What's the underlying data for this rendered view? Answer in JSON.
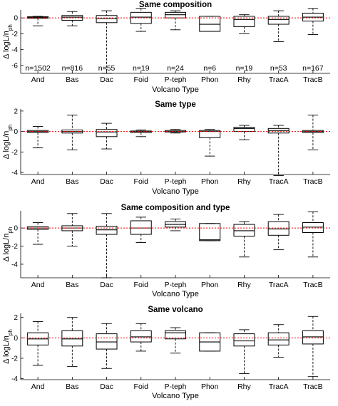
{
  "chart_data": [
    {
      "type": "boxplot",
      "title": "Same composition",
      "xlabel": "Volcano Type",
      "ylabel": "Δ logL/n_ph",
      "ylim": [
        -7,
        1
      ],
      "yticks": [
        0,
        -2,
        -4,
        -6
      ],
      "reference_line": 0,
      "categories": [
        "And",
        "Bas",
        "Dac",
        "Foid",
        "P-teph",
        "Phon",
        "Rhy",
        "TracA",
        "TracB"
      ],
      "n_labels": [
        "n=1502",
        "n=816",
        "n=55",
        "n=19",
        "n=24",
        "n=6",
        "n=19",
        "n=53",
        "n=167"
      ],
      "boxes": [
        {
          "min": -1.0,
          "q1": -0.05,
          "median": 0.05,
          "q3": 0.15,
          "max": 0.2
        },
        {
          "min": -1.0,
          "q1": -0.3,
          "median": 0.1,
          "q3": 0.3,
          "max": 0.8
        },
        {
          "min": -7.0,
          "q1": -0.6,
          "median": -0.1,
          "q3": 0.3,
          "max": 0.9
        },
        {
          "min": -1.7,
          "q1": -0.7,
          "median": 0.1,
          "q3": 0.7,
          "max": 1.2
        },
        {
          "min": -1.5,
          "q1": 0.0,
          "median": 0.4,
          "q3": 0.7,
          "max": 0.9
        },
        {
          "min": -1.7,
          "q1": -1.7,
          "median": -0.8,
          "q3": 0.2,
          "max": 0.2
        },
        {
          "min": -2.0,
          "q1": -1.1,
          "median": -0.2,
          "q3": 0.2,
          "max": 0.4
        },
        {
          "min": -3.0,
          "q1": -0.8,
          "median": -0.2,
          "q3": 0.2,
          "max": 0.9
        },
        {
          "min": -2.1,
          "q1": -0.4,
          "median": 0.1,
          "q3": 0.6,
          "max": 1.2
        }
      ]
    },
    {
      "type": "boxplot",
      "title": "Same type",
      "xlabel": "Volcano Type",
      "ylabel": "Δ logL/n_ph",
      "ylim": [
        -4.2,
        2.2
      ],
      "yticks": [
        2,
        0,
        -2,
        -4
      ],
      "reference_line": 0,
      "categories": [
        "And",
        "Bas",
        "Dac",
        "Foid",
        "P-teph",
        "Phon",
        "Rhy",
        "TracA",
        "TracB"
      ],
      "boxes": [
        {
          "min": -1.6,
          "q1": -0.1,
          "median": 0.0,
          "q3": 0.1,
          "max": 0.5
        },
        {
          "min": -1.8,
          "q1": -0.15,
          "median": 0.0,
          "q3": 0.15,
          "max": 1.6
        },
        {
          "min": -1.7,
          "q1": -0.5,
          "median": -0.05,
          "q3": 0.2,
          "max": 0.8
        },
        {
          "min": -0.5,
          "q1": -0.1,
          "median": 0.0,
          "q3": 0.05,
          "max": 0.15
        },
        {
          "min": -0.15,
          "q1": -0.05,
          "median": 0.0,
          "q3": 0.1,
          "max": 0.2
        },
        {
          "min": -2.4,
          "q1": -0.6,
          "median": 0.0,
          "q3": 0.1,
          "max": 0.2
        },
        {
          "min": -0.8,
          "q1": 0.0,
          "median": 0.3,
          "q3": 0.4,
          "max": 0.6
        },
        {
          "min": -4.3,
          "q1": -0.15,
          "median": 0.1,
          "q3": 0.3,
          "max": 0.6
        },
        {
          "min": -1.8,
          "q1": -0.1,
          "median": 0.0,
          "q3": 0.1,
          "max": 1.6
        }
      ]
    },
    {
      "type": "boxplot",
      "title": "Same composition and type",
      "xlabel": "Volcano Type",
      "ylabel": "Δ logL/n_ph",
      "ylim": [
        -5.5,
        1.9
      ],
      "yticks": [
        0,
        -2,
        -4
      ],
      "reference_line": 0,
      "categories": [
        "And",
        "Bas",
        "Dac",
        "Foid",
        "P-teph",
        "Phon",
        "Rhy",
        "TracA",
        "TracB"
      ],
      "boxes": [
        {
          "min": -1.8,
          "q1": -0.15,
          "median": 0.0,
          "q3": 0.15,
          "max": 0.6
        },
        {
          "min": -2.0,
          "q1": -0.3,
          "median": 0.0,
          "q3": 0.25,
          "max": 1.6
        },
        {
          "min": -5.5,
          "q1": -0.7,
          "median": -0.2,
          "q3": 0.2,
          "max": 1.6
        },
        {
          "min": -1.6,
          "q1": -0.7,
          "median": 0.0,
          "q3": 0.8,
          "max": 1.2
        },
        {
          "min": -0.3,
          "q1": 0.1,
          "median": 0.4,
          "q3": 0.7,
          "max": 1.0
        },
        {
          "min": -1.4,
          "q1": -1.4,
          "median": -1.3,
          "q3": 0.5,
          "max": 0.5
        },
        {
          "min": -3.2,
          "q1": -0.9,
          "median": -0.3,
          "q3": 0.4,
          "max": 0.7
        },
        {
          "min": -2.4,
          "q1": -0.8,
          "median": -0.1,
          "q3": 0.7,
          "max": 1.5
        },
        {
          "min": -3.2,
          "q1": -0.5,
          "median": 0.1,
          "q3": 0.6,
          "max": 1.8
        }
      ]
    },
    {
      "type": "boxplot",
      "title": "Same volcano",
      "xlabel": "Volcano Type",
      "ylabel": "Δ logL/n_ph",
      "ylim": [
        -4.1,
        2.4
      ],
      "yticks": [
        2,
        0,
        -2,
        -4
      ],
      "reference_line": 0,
      "categories": [
        "And",
        "Bas",
        "Dac",
        "Foid",
        "P-teph",
        "Phon",
        "Rhy",
        "TracA",
        "TracB"
      ],
      "boxes": [
        {
          "min": -2.7,
          "q1": -0.7,
          "median": -0.1,
          "q3": 0.5,
          "max": 1.6
        },
        {
          "min": -2.8,
          "q1": -0.8,
          "median": -0.1,
          "q3": 0.7,
          "max": 2.0
        },
        {
          "min": -3.0,
          "q1": -1.1,
          "median": -0.4,
          "q3": 0.4,
          "max": 1.4
        },
        {
          "min": -1.3,
          "q1": -0.4,
          "median": 0.1,
          "q3": 0.7,
          "max": 1.4
        },
        {
          "min": -1.5,
          "q1": -0.1,
          "median": 0.5,
          "q3": 0.7,
          "max": 1.0
        },
        {
          "min": -1.3,
          "q1": -1.3,
          "median": -0.4,
          "q3": 0.5,
          "max": 0.5
        },
        {
          "min": -3.5,
          "q1": -0.8,
          "median": -0.3,
          "q3": 0.4,
          "max": 0.8
        },
        {
          "min": -1.9,
          "q1": -0.7,
          "median": -0.2,
          "q3": 0.5,
          "max": 1.3
        },
        {
          "min": -3.8,
          "q1": -0.6,
          "median": 0.1,
          "q3": 0.7,
          "max": 2.1
        }
      ]
    }
  ],
  "colors": {
    "box": "#000000",
    "reference_line": "#ff0000",
    "axis": "#000000"
  }
}
